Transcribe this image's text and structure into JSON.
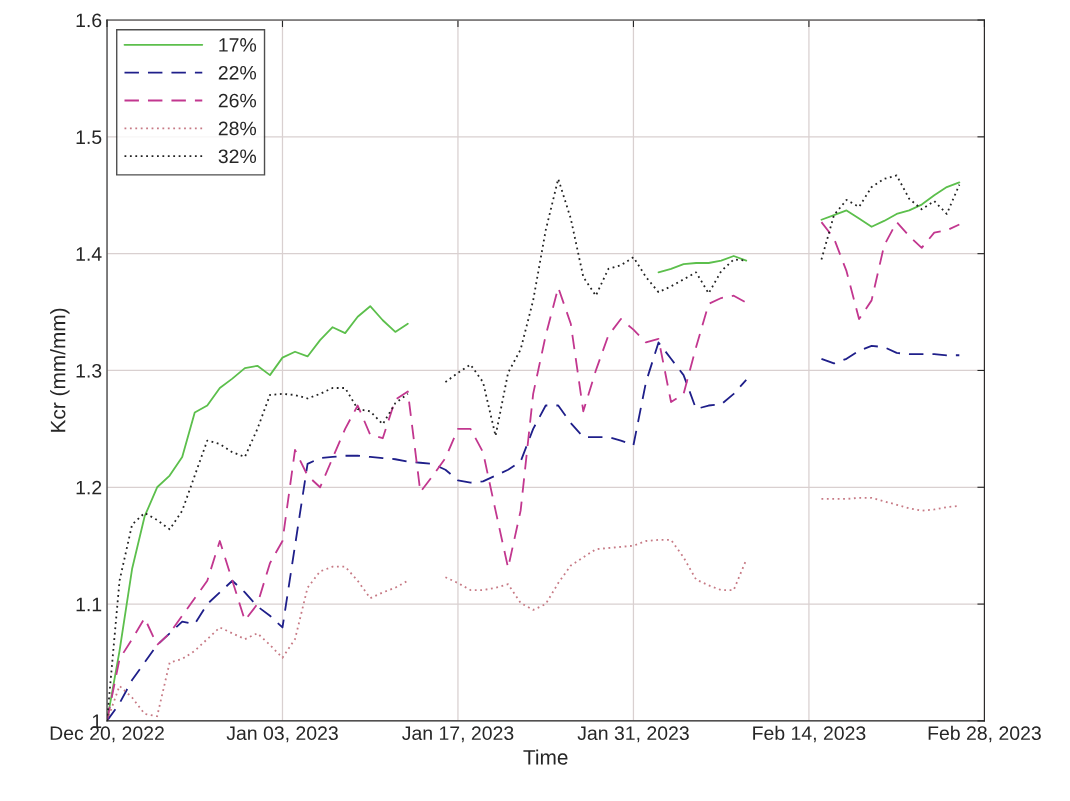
{
  "chart_data": {
    "type": "line",
    "xlabel": "Time",
    "ylabel": "Kcr (mm/mm)",
    "x": [
      "2022-12-20",
      "2022-12-21",
      "2022-12-22",
      "2022-12-23",
      "2022-12-24",
      "2022-12-25",
      "2022-12-26",
      "2022-12-27",
      "2022-12-28",
      "2022-12-29",
      "2022-12-30",
      "2022-12-31",
      "2023-01-01",
      "2023-01-02",
      "2023-01-03",
      "2023-01-04",
      "2023-01-05",
      "2023-01-06",
      "2023-01-07",
      "2023-01-08",
      "2023-01-09",
      "2023-01-10",
      "2023-01-11",
      "2023-01-12",
      "2023-01-13",
      "2023-01-14",
      "2023-01-15",
      "2023-01-16",
      "2023-01-17",
      "2023-01-18",
      "2023-01-19",
      "2023-01-20",
      "2023-01-21",
      "2023-01-22",
      "2023-01-23",
      "2023-01-24",
      "2023-01-25",
      "2023-01-26",
      "2023-01-27",
      "2023-01-28",
      "2023-01-29",
      "2023-01-30",
      "2023-01-31",
      "2023-02-01",
      "2023-02-02",
      "2023-02-03",
      "2023-02-04",
      "2023-02-05",
      "2023-02-06",
      "2023-02-07",
      "2023-02-08",
      "2023-02-09",
      "2023-02-10",
      "2023-02-11",
      "2023-02-12",
      "2023-02-13",
      "2023-02-14",
      "2023-02-15",
      "2023-02-16",
      "2023-02-17",
      "2023-02-18",
      "2023-02-19",
      "2023-02-20",
      "2023-02-21",
      "2023-02-22",
      "2023-02-23",
      "2023-02-24",
      "2023-02-25",
      "2023-02-26"
    ],
    "series": [
      {
        "name": "17%",
        "color": "#5cbf4c",
        "line_style": "solid",
        "values": [
          1.0,
          1.06,
          1.13,
          1.175,
          1.2,
          1.21,
          1.226,
          1.264,
          1.27,
          1.285,
          1.293,
          1.302,
          1.304,
          1.296,
          1.311,
          1.316,
          1.312,
          1.326,
          1.337,
          1.332,
          1.346,
          1.355,
          1.343,
          1.333,
          1.34,
          null,
          null,
          null,
          null,
          null,
          null,
          null,
          null,
          null,
          null,
          null,
          null,
          null,
          null,
          null,
          null,
          null,
          null,
          null,
          1.384,
          1.387,
          1.391,
          1.392,
          1.392,
          1.394,
          1.398,
          1.394,
          null,
          null,
          null,
          null,
          null,
          1.429,
          1.433,
          1.437,
          1.43,
          1.423,
          1.428,
          1.434,
          1.437,
          1.442,
          1.45,
          1.457,
          1.461
        ]
      },
      {
        "name": "22%",
        "color": "#1f1f8a",
        "line_style": "dashed",
        "values": [
          1.0,
          1.015,
          1.035,
          1.05,
          1.065,
          1.075,
          1.085,
          1.083,
          1.1,
          1.11,
          1.12,
          1.11,
          1.098,
          1.09,
          1.08,
          1.15,
          1.22,
          1.225,
          1.226,
          1.227,
          1.227,
          1.226,
          1.225,
          1.224,
          1.222,
          1.221,
          1.22,
          1.215,
          1.206,
          1.204,
          1.205,
          1.21,
          1.215,
          1.222,
          1.25,
          1.27,
          1.27,
          1.255,
          1.243,
          1.243,
          1.243,
          1.24,
          1.236,
          1.29,
          1.324,
          1.31,
          1.296,
          1.267,
          1.27,
          1.271,
          1.28,
          1.292,
          null,
          null,
          null,
          null,
          null,
          1.31,
          1.306,
          1.31,
          1.317,
          1.321,
          1.32,
          1.315,
          1.314,
          1.314,
          1.314,
          1.313,
          1.313
        ]
      },
      {
        "name": "26%",
        "color": "#c2378f",
        "line_style": "dashed",
        "values": [
          1.0,
          1.053,
          1.07,
          1.088,
          1.065,
          1.075,
          1.09,
          1.105,
          1.12,
          1.154,
          1.12,
          1.086,
          1.1,
          1.135,
          1.154,
          1.232,
          1.21,
          1.2,
          1.225,
          1.25,
          1.27,
          1.245,
          1.242,
          1.275,
          1.282,
          1.196,
          1.21,
          1.225,
          1.25,
          1.25,
          1.23,
          1.18,
          1.131,
          1.18,
          1.28,
          1.33,
          1.371,
          1.34,
          1.265,
          1.3,
          1.33,
          1.344,
          1.335,
          1.324,
          1.327,
          1.273,
          1.28,
          1.32,
          1.357,
          1.362,
          1.364,
          1.358,
          null,
          null,
          null,
          null,
          null,
          1.427,
          1.413,
          1.385,
          1.344,
          1.36,
          1.407,
          1.427,
          1.415,
          1.405,
          1.418,
          1.42,
          1.425
        ]
      },
      {
        "name": "28%",
        "color": "#c77a85",
        "line_style": "dotted",
        "values": [
          1.0,
          1.03,
          1.02,
          1.006,
          1.004,
          1.05,
          1.053,
          1.06,
          1.07,
          1.08,
          1.075,
          1.07,
          1.075,
          1.065,
          1.054,
          1.07,
          1.114,
          1.128,
          1.132,
          1.132,
          1.12,
          1.105,
          1.11,
          1.114,
          1.12,
          null,
          null,
          1.123,
          1.118,
          1.112,
          1.112,
          1.114,
          1.117,
          1.101,
          1.095,
          1.1,
          1.118,
          1.133,
          1.14,
          1.147,
          1.148,
          1.149,
          1.15,
          1.154,
          1.155,
          1.155,
          1.14,
          1.121,
          1.116,
          1.112,
          1.112,
          1.138,
          null,
          null,
          null,
          null,
          null,
          1.19,
          1.19,
          1.19,
          1.191,
          1.191,
          1.188,
          1.185,
          1.182,
          1.18,
          1.181,
          1.183,
          1.184
        ]
      },
      {
        "name": "32%",
        "color": "#222222",
        "line_style": "dotted",
        "values": [
          1.0,
          1.12,
          1.168,
          1.178,
          1.172,
          1.164,
          1.18,
          1.21,
          1.24,
          1.237,
          1.23,
          1.226,
          1.25,
          1.279,
          1.28,
          1.279,
          1.276,
          1.28,
          1.285,
          1.285,
          1.267,
          1.265,
          1.254,
          1.272,
          1.28,
          null,
          null,
          1.29,
          1.298,
          1.305,
          1.29,
          1.244,
          1.298,
          1.318,
          1.36,
          1.42,
          1.464,
          1.43,
          1.38,
          1.364,
          1.387,
          1.39,
          1.397,
          1.38,
          1.367,
          1.372,
          1.378,
          1.384,
          1.366,
          1.385,
          1.395,
          1.394,
          null,
          null,
          null,
          null,
          null,
          1.395,
          1.433,
          1.446,
          1.44,
          1.457,
          1.464,
          1.467,
          1.447,
          1.438,
          1.445,
          1.434,
          1.459
        ]
      }
    ],
    "xlim": [
      "2022-12-20",
      "2023-02-28"
    ],
    "xticks": [
      {
        "value": "2022-12-20",
        "label": "Dec 20, 2022"
      },
      {
        "value": "2023-01-03",
        "label": "Jan 03, 2023"
      },
      {
        "value": "2023-01-17",
        "label": "Jan 17, 2023"
      },
      {
        "value": "2023-01-31",
        "label": "Jan 31, 2023"
      },
      {
        "value": "2023-02-14",
        "label": "Feb 14, 2023"
      },
      {
        "value": "2023-02-28",
        "label": "Feb 28, 2023"
      }
    ],
    "ylim": [
      1,
      1.6
    ],
    "yticks": [
      1,
      1.1,
      1.2,
      1.3,
      1.4,
      1.5,
      1.6
    ],
    "grid": true,
    "legend": "top left"
  }
}
